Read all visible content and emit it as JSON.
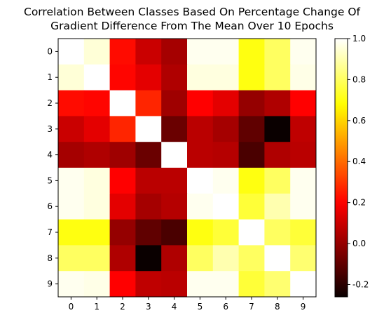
{
  "chart_data": {
    "type": "heatmap",
    "title_lines": [
      "Correlation Between Classes Based On Percentage Change Of",
      "Gradient Difference From The Mean Over 10 Epochs"
    ],
    "x_ticks": [
      "0",
      "1",
      "2",
      "3",
      "4",
      "5",
      "6",
      "7",
      "8",
      "9"
    ],
    "y_ticks": [
      "0",
      "1",
      "2",
      "3",
      "4",
      "5",
      "6",
      "7",
      "8",
      "9"
    ],
    "colormap": "hot",
    "vmin": -0.26,
    "vmax": 1.0,
    "colorbar_ticks": [
      "1.0",
      "0.8",
      "0.6",
      "0.4",
      "0.2",
      "0.0",
      "-0.2"
    ],
    "colorbar_tick_values": [
      1.0,
      0.8,
      0.6,
      0.4,
      0.2,
      0.0,
      -0.2
    ],
    "matrix": [
      [
        1.0,
        0.95,
        0.22,
        0.1,
        0.03,
        0.98,
        0.98,
        0.7,
        0.8,
        0.98
      ],
      [
        0.95,
        1.0,
        0.21,
        0.15,
        0.05,
        0.96,
        0.96,
        0.7,
        0.8,
        0.97
      ],
      [
        0.22,
        0.21,
        1.0,
        0.27,
        0.02,
        0.2,
        0.15,
        0.0,
        0.05,
        0.2
      ],
      [
        0.1,
        0.15,
        0.27,
        1.0,
        -0.08,
        0.07,
        0.03,
        -0.1,
        -0.26,
        0.08
      ],
      [
        0.03,
        0.05,
        0.02,
        -0.08,
        1.0,
        0.07,
        0.06,
        -0.14,
        0.05,
        0.07
      ],
      [
        0.98,
        0.96,
        0.2,
        0.07,
        0.07,
        1.0,
        0.98,
        0.7,
        0.8,
        0.98
      ],
      [
        0.98,
        0.96,
        0.15,
        0.03,
        0.06,
        0.98,
        1.0,
        0.75,
        0.9,
        0.98
      ],
      [
        0.7,
        0.7,
        0.0,
        -0.1,
        -0.14,
        0.7,
        0.75,
        1.0,
        0.8,
        0.75
      ],
      [
        0.8,
        0.8,
        0.05,
        -0.26,
        0.05,
        0.8,
        0.9,
        0.8,
        1.0,
        0.82
      ],
      [
        0.98,
        0.97,
        0.2,
        0.08,
        0.07,
        0.98,
        0.98,
        0.75,
        0.82,
        1.0
      ]
    ]
  }
}
